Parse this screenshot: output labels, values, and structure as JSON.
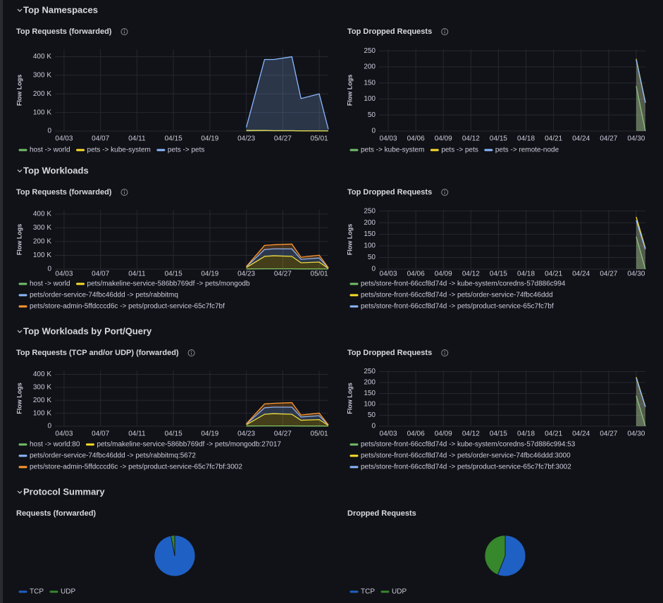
{
  "sections": [
    "Top Namespaces",
    "Top Workloads",
    "Top Workloads by Port/Query",
    "Protocol Summary"
  ],
  "chart_data": [
    {
      "type": "line",
      "title": "Top Requests (forwarded)",
      "ylabel": "Flow Logs",
      "stacked": false,
      "x": [
        "04/23",
        "04/25",
        "04/26",
        "04/28",
        "04/29",
        "05/01",
        "05/02"
      ],
      "xlim": [
        "04/02",
        "05/02"
      ],
      "xticks": [
        "04/03",
        "04/07",
        "04/11",
        "04/15",
        "04/19",
        "04/23",
        "04/27",
        "05/01"
      ],
      "ylim": [
        0,
        440000
      ],
      "yticks": [
        0,
        {
          "value": 100000,
          "label": "100 K"
        },
        {
          "value": 200000,
          "label": "200 K"
        },
        {
          "value": 300000,
          "label": "300 K"
        },
        {
          "value": 400000,
          "label": "400 K"
        }
      ],
      "series": [
        {
          "name": "host -> world",
          "color": "#73bf69",
          "values": [
            1000,
            2000,
            2000,
            2000,
            1000,
            1000,
            500
          ]
        },
        {
          "name": "pets -> kube-system",
          "color": "#fade2a",
          "values": [
            3000,
            3000,
            2000,
            2000,
            1000,
            1000,
            500
          ]
        },
        {
          "name": "pets -> pets",
          "color": "#8ab8ff",
          "values": [
            20000,
            385000,
            385000,
            400000,
            175000,
            200000,
            10000
          ]
        }
      ]
    },
    {
      "type": "line",
      "title": "Top Dropped Requests",
      "ylabel": "Flow Logs",
      "stacked": false,
      "x": [
        "04/30",
        "05/01"
      ],
      "xlim": [
        "04/02",
        "05/01"
      ],
      "xticks": [
        "04/03",
        "04/06",
        "04/09",
        "04/12",
        "04/15",
        "04/18",
        "04/21",
        "04/24",
        "04/27",
        "04/30"
      ],
      "ylim": [
        0,
        255
      ],
      "yticks": [
        0,
        50,
        100,
        150,
        200,
        250
      ],
      "series": [
        {
          "name": "pets -> kube-system",
          "color": "#73bf69",
          "values": [
            140,
            0
          ]
        },
        {
          "name": "pets -> pets",
          "color": "#fade2a",
          "values": [
            225,
            90
          ]
        },
        {
          "name": "pets -> remote-node",
          "color": "#8ab8ff",
          "values": [
            222,
            88
          ]
        }
      ]
    },
    {
      "type": "line",
      "title": "Top Requests (forwarded)",
      "ylabel": "Flow Logs",
      "stacked": true,
      "x": [
        "04/23",
        "04/25",
        "04/26",
        "04/28",
        "04/29",
        "05/01",
        "05/02"
      ],
      "xlim": [
        "04/02",
        "05/02"
      ],
      "xticks": [
        "04/03",
        "04/07",
        "04/11",
        "04/15",
        "04/19",
        "04/23",
        "04/27",
        "05/01"
      ],
      "ylim": [
        0,
        430000
      ],
      "yticks": [
        0,
        {
          "value": 100000,
          "label": "100 K"
        },
        {
          "value": 200000,
          "label": "200 K"
        },
        {
          "value": 300000,
          "label": "300 K"
        },
        {
          "value": 400000,
          "label": "400 K"
        }
      ],
      "series": [
        {
          "name": "host -> world",
          "color": "#73bf69",
          "values": [
            1000,
            2000,
            2000,
            2000,
            1000,
            1000,
            500
          ]
        },
        {
          "name": "pets/makeline-service-586bb769df -> pets/mongodb",
          "color": "#fade2a",
          "values": [
            10000,
            90000,
            95000,
            90000,
            45000,
            50000,
            5000
          ]
        },
        {
          "name": "pets/order-service-74fbc46ddd -> pets/rabbitmq",
          "color": "#8ab8ff",
          "values": [
            5000,
            50000,
            50000,
            55000,
            25000,
            30000,
            3000
          ]
        },
        {
          "name": "pets/store-admin-5ffdcccd6c -> pets/product-service-65c7fc7bf",
          "color": "#ff9830",
          "values": [
            3000,
            30000,
            30000,
            35000,
            15000,
            20000,
            2000
          ]
        }
      ]
    },
    {
      "type": "line",
      "title": "Top Dropped Requests",
      "ylabel": "Flow Logs",
      "stacked": false,
      "x": [
        "04/30",
        "05/01"
      ],
      "xlim": [
        "04/02",
        "05/01"
      ],
      "xticks": [
        "04/03",
        "04/06",
        "04/09",
        "04/12",
        "04/15",
        "04/18",
        "04/21",
        "04/24",
        "04/27",
        "04/30"
      ],
      "ylim": [
        0,
        255
      ],
      "yticks": [
        0,
        50,
        100,
        150,
        200,
        250
      ],
      "series": [
        {
          "name": "pets/store-front-66ccf8d74d -> kube-system/coredns-57d886c994",
          "color": "#73bf69",
          "values": [
            140,
            0
          ]
        },
        {
          "name": "pets/store-front-66ccf8d74d -> pets/order-service-74fbc46ddd",
          "color": "#fade2a",
          "values": [
            225,
            90
          ]
        },
        {
          "name": "pets/store-front-66ccf8d74d -> pets/product-service-65c7fc7bf",
          "color": "#8ab8ff",
          "values": [
            210,
            85
          ]
        }
      ]
    },
    {
      "type": "line",
      "title": "Top Requests (TCP and/or UDP) (forwarded)",
      "ylabel": "Flow Logs",
      "stacked": true,
      "x": [
        "04/23",
        "04/25",
        "04/26",
        "04/28",
        "04/29",
        "05/01",
        "05/02"
      ],
      "xlim": [
        "04/02",
        "05/02"
      ],
      "xticks": [
        "04/03",
        "04/07",
        "04/11",
        "04/15",
        "04/19",
        "04/23",
        "04/27",
        "05/01"
      ],
      "ylim": [
        0,
        430000
      ],
      "yticks": [
        0,
        {
          "value": 100000,
          "label": "100 K"
        },
        {
          "value": 200000,
          "label": "200 K"
        },
        {
          "value": 300000,
          "label": "300 K"
        },
        {
          "value": 400000,
          "label": "400 K"
        }
      ],
      "series": [
        {
          "name": "host -> world:80",
          "color": "#73bf69",
          "values": [
            1000,
            2000,
            2000,
            2000,
            1000,
            1000,
            500
          ]
        },
        {
          "name": "pets/makeline-service-586bb769df -> pets/mongodb:27017",
          "color": "#fade2a",
          "values": [
            10000,
            90000,
            95000,
            90000,
            45000,
            50000,
            5000
          ]
        },
        {
          "name": "pets/order-service-74fbc46ddd -> pets/rabbitmq:5672",
          "color": "#8ab8ff",
          "values": [
            5000,
            50000,
            50000,
            55000,
            25000,
            30000,
            3000
          ]
        },
        {
          "name": "pets/store-admin-5ffdcccd6c -> pets/product-service-65c7fc7bf:3002",
          "color": "#ff9830",
          "values": [
            3000,
            30000,
            30000,
            35000,
            15000,
            20000,
            2000
          ]
        }
      ]
    },
    {
      "type": "line",
      "title": "Top Dropped Requests",
      "ylabel": "Flow Logs",
      "stacked": false,
      "x": [
        "04/30",
        "05/01"
      ],
      "xlim": [
        "04/02",
        "05/01"
      ],
      "xticks": [
        "04/03",
        "04/06",
        "04/09",
        "04/12",
        "04/15",
        "04/18",
        "04/21",
        "04/24",
        "04/27",
        "04/30"
      ],
      "ylim": [
        0,
        255
      ],
      "yticks": [
        0,
        50,
        100,
        150,
        200,
        250
      ],
      "series": [
        {
          "name": "pets/store-front-66ccf8d74d -> kube-system/coredns-57d886c994:53",
          "color": "#73bf69",
          "values": [
            140,
            0
          ]
        },
        {
          "name": "pets/store-front-66ccf8d74d -> pets/order-service-74fbc46ddd:3000",
          "color": "#fade2a",
          "values": [
            225,
            90
          ]
        },
        {
          "name": "pets/store-front-66ccf8d74d -> pets/product-service-65c7fc7bf:3002",
          "color": "#8ab8ff",
          "values": [
            220,
            88
          ]
        }
      ]
    },
    {
      "type": "pie",
      "title": "Requests (forwarded)",
      "categories": [
        "TCP",
        "UDP"
      ],
      "values": [
        97,
        3
      ],
      "colors": [
        "#1f60c4",
        "#37872d"
      ]
    },
    {
      "type": "pie",
      "title": "Dropped Requests",
      "categories": [
        "TCP",
        "UDP"
      ],
      "values": [
        56,
        44
      ],
      "colors": [
        "#1f60c4",
        "#37872d"
      ]
    }
  ]
}
